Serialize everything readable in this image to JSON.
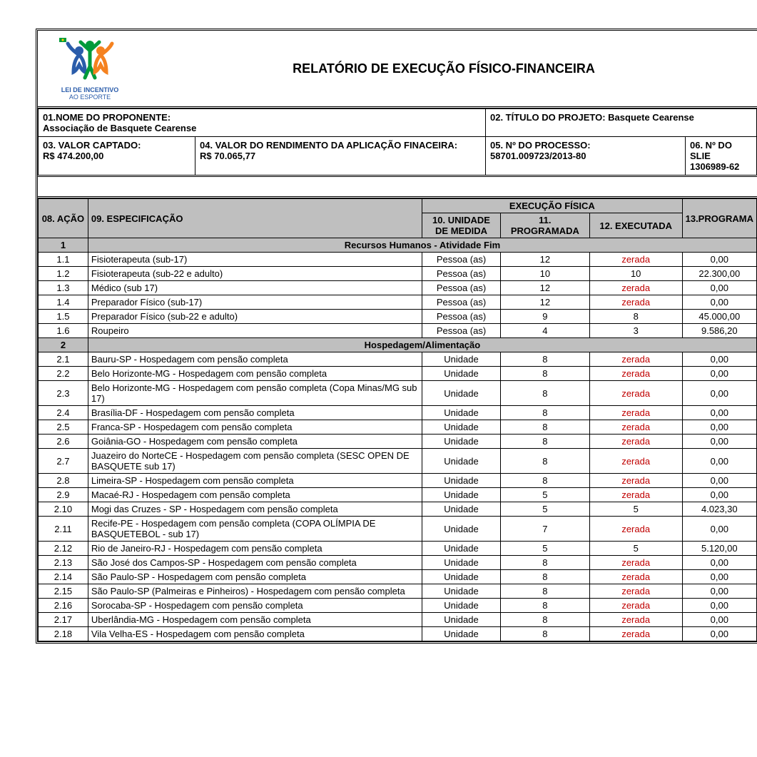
{
  "title": "RELATÓRIO DE EXECUÇÃO FÍSICO-FINANCEIRA",
  "logo": {
    "line1": "LEI DE INCENTIVO",
    "line2": "AO ESPORTE"
  },
  "info": {
    "f01_label": "01.NOME DO PROPONENTE:",
    "f01_value": "Associação de Basquete Cearense",
    "f02_label": "02. TÍTULO DO PROJETO: Basquete Cearense",
    "f03_label": "03. VALOR CAPTADO:",
    "f03_value": "R$ 474.200,00",
    "f04_label": "04. VALOR DO RENDIMENTO DA APLICAÇÃO FINACEIRA:",
    "f04_value": "R$ 70.065,77",
    "f05_label": "05. Nº DO PROCESSO:",
    "f05_value": "58701.009723/2013-80",
    "f06_label": "06. Nº DO SLIE",
    "f06_value": "1306989-62"
  },
  "headers": {
    "acao": "08. AÇÃO",
    "espec": "09. ESPECIFICAÇÃO",
    "exec_fisica": "EXECUÇÃO FÍSICA",
    "unidade": "10. UNIDADE DE MEDIDA",
    "programada": "11. PROGRAMADA",
    "executada": "12. EXECUTADA",
    "prog2": "13.PROGRAMA"
  },
  "sections": [
    {
      "num": "1",
      "title": "Recursos Humanos - Atividade Fim",
      "rows": [
        {
          "n": "1.1",
          "e": "Fisioterapeuta (sub-17)",
          "u": "Pessoa (as)",
          "p": "12",
          "x": "zerada",
          "z": true,
          "v": "0,00"
        },
        {
          "n": "1.2",
          "e": "Fisioterapeuta (sub-22 e adulto)",
          "u": "Pessoa (as)",
          "p": "10",
          "x": "10",
          "z": false,
          "v": "22.300,00"
        },
        {
          "n": "1.3",
          "e": "Médico (sub 17)",
          "u": "Pessoa (as)",
          "p": "12",
          "x": "zerada",
          "z": true,
          "v": "0,00"
        },
        {
          "n": "1.4",
          "e": "Preparador Físico (sub-17)",
          "u": "Pessoa (as)",
          "p": "12",
          "x": "zerada",
          "z": true,
          "v": "0,00"
        },
        {
          "n": "1.5",
          "e": "Preparador Físico (sub-22 e adulto)",
          "u": "Pessoa (as)",
          "p": "9",
          "x": "8",
          "z": false,
          "v": "45.000,00"
        },
        {
          "n": "1.6",
          "e": "Roupeiro",
          "u": "Pessoa (as)",
          "p": "4",
          "x": "3",
          "z": false,
          "v": "9.586,20"
        }
      ]
    },
    {
      "num": "2",
      "title": "Hospedagem/Alimentação",
      "rows": [
        {
          "n": "2.1",
          "e": "Bauru-SP - Hospedagem com pensão completa",
          "u": "Unidade",
          "p": "8",
          "x": "zerada",
          "z": true,
          "v": "0,00"
        },
        {
          "n": "2.2",
          "e": "Belo Horizonte-MG - Hospedagem com pensão completa",
          "u": "Unidade",
          "p": "8",
          "x": "zerada",
          "z": true,
          "v": "0,00"
        },
        {
          "n": "2.3",
          "e": "Belo Horizonte-MG - Hospedagem com pensão completa (Copa Minas/MG sub 17)",
          "u": "Unidade",
          "p": "8",
          "x": "zerada",
          "z": true,
          "v": "0,00"
        },
        {
          "n": "2.4",
          "e": "Brasília-DF - Hospedagem com pensão completa",
          "u": "Unidade",
          "p": "8",
          "x": "zerada",
          "z": true,
          "v": "0,00"
        },
        {
          "n": "2.5",
          "e": "Franca-SP - Hospedagem com pensão completa",
          "u": "Unidade",
          "p": "8",
          "x": "zerada",
          "z": true,
          "v": "0,00"
        },
        {
          "n": "2.6",
          "e": "Goiânia-GO - Hospedagem com pensão completa",
          "u": "Unidade",
          "p": "8",
          "x": "zerada",
          "z": true,
          "v": "0,00"
        },
        {
          "n": "2.7",
          "e": "Juazeiro do NorteCE - Hospedagem com pensão completa (SESC OPEN DE BASQUETE sub 17)",
          "u": "Unidade",
          "p": "8",
          "x": "zerada",
          "z": true,
          "v": "0,00"
        },
        {
          "n": "2.8",
          "e": "Limeira-SP - Hospedagem com pensão completa",
          "u": "Unidade",
          "p": "8",
          "x": "zerada",
          "z": true,
          "v": "0,00"
        },
        {
          "n": "2.9",
          "e": "Macaé-RJ - Hospedagem com pensão completa",
          "u": "Unidade",
          "p": "5",
          "x": "zerada",
          "z": true,
          "v": "0,00"
        },
        {
          "n": "2.10",
          "e": "Mogi das Cruzes - SP - Hospedagem com pensão completa",
          "u": "Unidade",
          "p": "5",
          "x": "5",
          "z": false,
          "v": "4.023,30"
        },
        {
          "n": "2.11",
          "e": "Recife-PE - Hospedagem com pensão completa (COPA OLÍMPIA DE BASQUETEBOL - sub 17)",
          "u": "Unidade",
          "p": "7",
          "x": "zerada",
          "z": true,
          "v": "0,00"
        },
        {
          "n": "2.12",
          "e": "Rio de Janeiro-RJ - Hospedagem com pensão completa",
          "u": "Unidade",
          "p": "5",
          "x": "5",
          "z": false,
          "v": "5.120,00"
        },
        {
          "n": "2.13",
          "e": "São José dos Campos-SP - Hospedagem com pensão completa",
          "u": "Unidade",
          "p": "8",
          "x": "zerada",
          "z": true,
          "v": "0,00"
        },
        {
          "n": "2.14",
          "e": "São Paulo-SP - Hospedagem com pensão completa",
          "u": "Unidade",
          "p": "8",
          "x": "zerada",
          "z": true,
          "v": "0,00"
        },
        {
          "n": "2.15",
          "e": "São Paulo-SP (Palmeiras e Pinheiros) - Hospedagem com pensão completa",
          "u": "Unidade",
          "p": "8",
          "x": "zerada",
          "z": true,
          "v": "0,00"
        },
        {
          "n": "2.16",
          "e": "Sorocaba-SP - Hospedagem com pensão completa",
          "u": "Unidade",
          "p": "8",
          "x": "zerada",
          "z": true,
          "v": "0,00"
        },
        {
          "n": "2.17",
          "e": "Uberlândia-MG - Hospedagem com pensão completa",
          "u": "Unidade",
          "p": "8",
          "x": "zerada",
          "z": true,
          "v": "0,00"
        },
        {
          "n": "2.18",
          "e": "Vila Velha-ES - Hospedagem com pensão completa",
          "u": "Unidade",
          "p": "8",
          "x": "zerada",
          "z": true,
          "v": "0,00"
        }
      ]
    }
  ],
  "colors": {
    "header_bg": "#bfbfbf",
    "zerada": "#c00000",
    "border": "#000000"
  }
}
